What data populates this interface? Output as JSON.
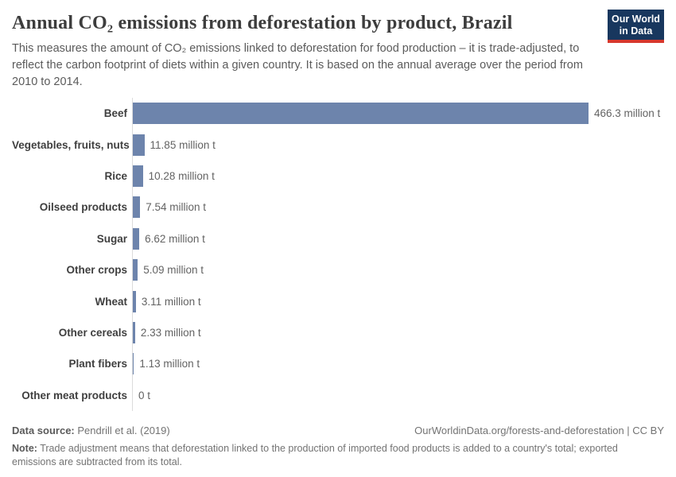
{
  "header": {
    "title": "Annual CO₂ emissions from deforestation by product, Brazil",
    "subtitle": "This measures the amount of CO₂ emissions linked to deforestation for food production – it is trade-adjusted, to reflect the carbon footprint of diets within a given country. It is based on the annual average over the period from 2010 to 2014."
  },
  "logo": {
    "line1": "Our World",
    "line2": "in Data",
    "bg_color": "#18375e",
    "stripe_color": "#d7382d"
  },
  "chart_data": {
    "type": "bar",
    "orientation": "horizontal",
    "title": "Annual CO₂ emissions from deforestation by product, Brazil",
    "unit": "million t",
    "categories": [
      "Beef",
      "Vegetables, fruits, nuts",
      "Rice",
      "Oilseed products",
      "Sugar",
      "Other crops",
      "Wheat",
      "Other cereals",
      "Plant fibers",
      "Other meat products"
    ],
    "values": [
      466.3,
      11.85,
      10.28,
      7.54,
      6.62,
      5.09,
      3.11,
      2.33,
      1.13,
      0
    ],
    "value_labels": [
      "466.3 million t",
      "11.85 million t",
      "10.28 million t",
      "7.54 million t",
      "6.62 million t",
      "5.09 million t",
      "3.11 million t",
      "2.33 million t",
      "1.13 million t",
      "0 t"
    ],
    "xlim": [
      0,
      466.3
    ],
    "bar_color": "#6d84ac",
    "axis_line_color": "#dcdcdc",
    "grid": false,
    "legend": "none"
  },
  "footer": {
    "source_label": "Data source:",
    "source_value": "Pendrill et al. (2019)",
    "link": "OurWorldinData.org/forests-and-deforestation | CC BY",
    "note_label": "Note:",
    "note_value": "Trade adjustment means that deforestation linked to the production of imported food products is added to a country's total; exported emissions are subtracted from its total."
  }
}
